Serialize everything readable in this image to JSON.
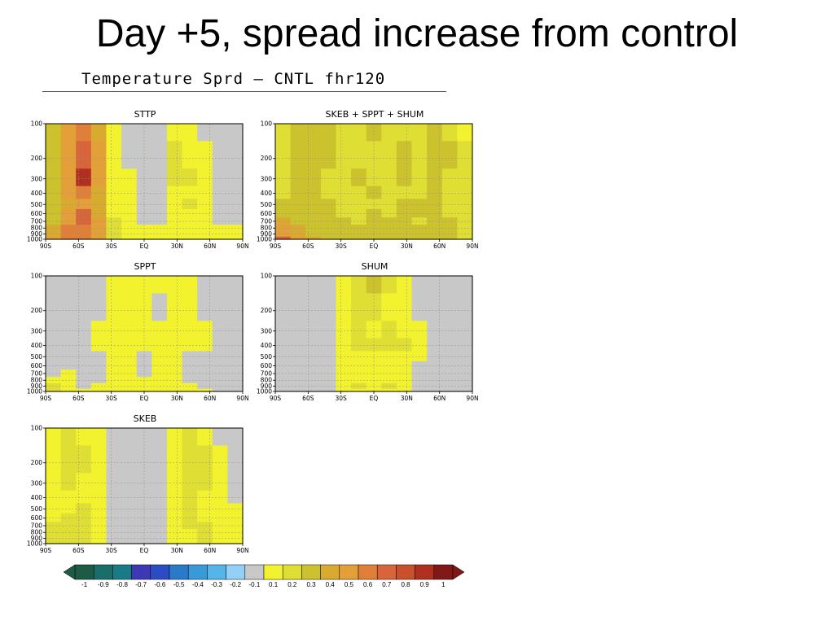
{
  "slide": {
    "title": "Day +5, spread increase from control"
  },
  "figure": {
    "title": "Temperature Sprd – CNTL  fhr120"
  },
  "chart_data": [
    {
      "type": "heatmap",
      "title": "STTP",
      "x": [
        "90S",
        "60S",
        "30S",
        "EQ",
        "30N",
        "60N",
        "90N"
      ],
      "y": [
        100,
        200,
        300,
        400,
        500,
        600,
        700,
        800,
        900,
        1000
      ],
      "xlabel": "",
      "ylabel": "",
      "ylim": [
        1000,
        100
      ],
      "y_scale": "log",
      "grid": true,
      "values": [
        [
          0.3,
          0.5,
          0.6,
          0.4,
          0.1,
          0.0,
          0.0,
          0.0,
          0.1,
          0.1,
          0.0,
          0.0,
          0.0
        ],
        [
          0.3,
          0.5,
          0.7,
          0.5,
          0.1,
          0.0,
          0.0,
          0.0,
          0.2,
          0.1,
          0.1,
          0.0,
          0.0
        ],
        [
          0.3,
          0.5,
          0.9,
          0.5,
          0.1,
          0.1,
          0.0,
          0.0,
          0.2,
          0.2,
          0.1,
          0.0,
          0.0
        ],
        [
          0.3,
          0.5,
          0.6,
          0.4,
          0.1,
          0.1,
          0.0,
          0.0,
          0.1,
          0.1,
          0.1,
          0.0,
          0.0
        ],
        [
          0.3,
          0.4,
          0.5,
          0.4,
          0.1,
          0.1,
          0.0,
          0.0,
          0.1,
          0.2,
          0.1,
          0.0,
          0.0
        ],
        [
          0.3,
          0.5,
          0.7,
          0.4,
          0.1,
          0.1,
          0.0,
          0.0,
          0.1,
          0.1,
          0.1,
          0.0,
          0.0
        ],
        [
          0.3,
          0.5,
          0.7,
          0.5,
          0.2,
          0.1,
          0.0,
          0.0,
          0.1,
          0.1,
          0.1,
          0.0,
          0.0
        ],
        [
          0.4,
          0.6,
          0.6,
          0.5,
          0.2,
          0.1,
          0.1,
          0.1,
          0.1,
          0.1,
          0.1,
          0.1,
          0.1
        ],
        [
          0.4,
          0.6,
          0.6,
          0.5,
          0.2,
          0.1,
          0.1,
          0.1,
          0.1,
          0.1,
          0.1,
          0.1,
          0.1
        ],
        [
          0.5,
          0.6,
          0.6,
          0.5,
          0.2,
          0.1,
          0.1,
          0.1,
          0.1,
          0.1,
          0.1,
          0.1,
          0.1
        ]
      ]
    },
    {
      "type": "heatmap",
      "title": "SKEB + SPPT + SHUM",
      "x": [
        "90S",
        "60S",
        "30S",
        "EQ",
        "30N",
        "60N",
        "90N"
      ],
      "y": [
        100,
        200,
        300,
        400,
        500,
        600,
        700,
        800,
        900,
        1000
      ],
      "xlabel": "",
      "ylabel": "",
      "ylim": [
        1000,
        100
      ],
      "y_scale": "log",
      "grid": true,
      "values": [
        [
          0.2,
          0.3,
          0.3,
          0.3,
          0.2,
          0.2,
          0.3,
          0.2,
          0.2,
          0.2,
          0.3,
          0.2,
          0.1
        ],
        [
          0.2,
          0.3,
          0.3,
          0.3,
          0.2,
          0.2,
          0.2,
          0.2,
          0.3,
          0.2,
          0.3,
          0.3,
          0.2
        ],
        [
          0.2,
          0.3,
          0.3,
          0.2,
          0.2,
          0.3,
          0.2,
          0.2,
          0.3,
          0.2,
          0.3,
          0.2,
          0.2
        ],
        [
          0.2,
          0.3,
          0.3,
          0.2,
          0.2,
          0.2,
          0.3,
          0.2,
          0.2,
          0.2,
          0.3,
          0.2,
          0.2
        ],
        [
          0.3,
          0.3,
          0.3,
          0.3,
          0.2,
          0.2,
          0.2,
          0.2,
          0.3,
          0.3,
          0.3,
          0.2,
          0.2
        ],
        [
          0.3,
          0.3,
          0.3,
          0.3,
          0.2,
          0.2,
          0.3,
          0.2,
          0.3,
          0.3,
          0.3,
          0.2,
          0.2
        ],
        [
          0.4,
          0.3,
          0.3,
          0.3,
          0.3,
          0.2,
          0.3,
          0.3,
          0.3,
          0.2,
          0.3,
          0.3,
          0.2
        ],
        [
          0.5,
          0.4,
          0.3,
          0.3,
          0.3,
          0.3,
          0.3,
          0.3,
          0.3,
          0.3,
          0.3,
          0.3,
          0.2
        ],
        [
          0.5,
          0.4,
          0.3,
          0.3,
          0.3,
          0.3,
          0.3,
          0.3,
          0.3,
          0.3,
          0.3,
          0.3,
          0.2
        ],
        [
          0.7,
          0.5,
          0.4,
          0.3,
          0.3,
          0.3,
          0.3,
          0.3,
          0.3,
          0.3,
          0.3,
          0.3,
          0.2
        ]
      ]
    },
    {
      "type": "heatmap",
      "title": "SPPT",
      "x": [
        "90S",
        "60S",
        "30S",
        "EQ",
        "30N",
        "60N",
        "90N"
      ],
      "y": [
        100,
        200,
        300,
        400,
        500,
        600,
        700,
        800,
        900,
        1000
      ],
      "xlabel": "",
      "ylabel": "",
      "ylim": [
        1000,
        100
      ],
      "y_scale": "log",
      "grid": true,
      "values": [
        [
          0.0,
          0.0,
          0.0,
          0.0,
          0.1,
          0.1,
          0.1,
          0.1,
          0.1,
          0.1,
          0.0,
          0.0,
          0.0
        ],
        [
          0.0,
          0.0,
          0.0,
          0.0,
          0.1,
          0.1,
          0.1,
          0.0,
          0.1,
          0.1,
          0.0,
          0.0,
          0.0
        ],
        [
          0.0,
          0.0,
          0.0,
          0.1,
          0.1,
          0.1,
          0.1,
          0.1,
          0.1,
          0.1,
          0.1,
          0.0,
          0.0
        ],
        [
          0.0,
          0.0,
          0.0,
          0.1,
          0.1,
          0.1,
          0.1,
          0.1,
          0.1,
          0.1,
          0.1,
          0.0,
          0.0
        ],
        [
          0.0,
          0.0,
          0.0,
          0.0,
          0.1,
          0.1,
          0.0,
          0.1,
          0.1,
          0.0,
          0.0,
          0.0,
          0.0
        ],
        [
          0.0,
          0.0,
          0.0,
          0.0,
          0.1,
          0.1,
          0.0,
          0.1,
          0.1,
          0.0,
          0.0,
          0.0,
          0.0
        ],
        [
          0.0,
          0.1,
          0.0,
          0.0,
          0.1,
          0.1,
          0.0,
          0.1,
          0.1,
          0.0,
          0.0,
          0.0,
          0.0
        ],
        [
          0.1,
          0.1,
          0.0,
          0.0,
          0.1,
          0.1,
          0.1,
          0.1,
          0.1,
          0.0,
          0.0,
          0.0,
          0.0
        ],
        [
          0.2,
          0.1,
          0.0,
          0.1,
          0.1,
          0.1,
          0.1,
          0.1,
          0.1,
          0.1,
          0.0,
          0.0,
          0.0
        ],
        [
          0.2,
          0.1,
          0.1,
          0.1,
          0.1,
          0.1,
          0.1,
          0.1,
          0.1,
          0.1,
          0.1,
          0.0,
          0.0
        ]
      ]
    },
    {
      "type": "heatmap",
      "title": "SHUM",
      "x": [
        "90S",
        "60S",
        "30S",
        "EQ",
        "30N",
        "60N",
        "90N"
      ],
      "y": [
        100,
        200,
        300,
        400,
        500,
        600,
        700,
        800,
        900,
        1000
      ],
      "xlabel": "",
      "ylabel": "",
      "ylim": [
        1000,
        100
      ],
      "y_scale": "log",
      "grid": true,
      "values": [
        [
          0.0,
          0.0,
          0.0,
          0.0,
          0.1,
          0.2,
          0.3,
          0.2,
          0.1,
          0.0,
          0.0,
          0.0,
          0.0
        ],
        [
          0.0,
          0.0,
          0.0,
          0.0,
          0.1,
          0.2,
          0.2,
          0.1,
          0.1,
          0.0,
          0.0,
          0.0,
          0.0
        ],
        [
          0.0,
          0.0,
          0.0,
          0.0,
          0.1,
          0.2,
          0.1,
          0.2,
          0.1,
          0.1,
          0.0,
          0.0,
          0.0
        ],
        [
          0.0,
          0.0,
          0.0,
          0.0,
          0.1,
          0.2,
          0.2,
          0.2,
          0.2,
          0.1,
          0.0,
          0.0,
          0.0
        ],
        [
          0.0,
          0.0,
          0.0,
          0.0,
          0.1,
          0.1,
          0.1,
          0.1,
          0.1,
          0.1,
          0.0,
          0.0,
          0.0
        ],
        [
          0.0,
          0.0,
          0.0,
          0.0,
          0.1,
          0.1,
          0.1,
          0.1,
          0.1,
          0.0,
          0.0,
          0.0,
          0.0
        ],
        [
          0.0,
          0.0,
          0.0,
          0.0,
          0.1,
          0.1,
          0.1,
          0.1,
          0.1,
          0.0,
          0.0,
          0.0,
          0.0
        ],
        [
          0.0,
          0.0,
          0.0,
          0.0,
          0.1,
          0.1,
          0.1,
          0.1,
          0.1,
          0.0,
          0.0,
          0.0,
          0.0
        ],
        [
          0.0,
          0.0,
          0.0,
          0.0,
          0.1,
          0.2,
          0.1,
          0.2,
          0.1,
          0.0,
          0.0,
          0.0,
          0.0
        ],
        [
          0.0,
          0.0,
          0.0,
          0.0,
          0.1,
          0.1,
          0.1,
          0.1,
          0.1,
          0.0,
          0.0,
          0.0,
          0.0
        ]
      ]
    },
    {
      "type": "heatmap",
      "title": "SKEB",
      "x": [
        "90S",
        "60S",
        "30S",
        "EQ",
        "30N",
        "60N",
        "90N"
      ],
      "y": [
        100,
        200,
        300,
        400,
        500,
        600,
        700,
        800,
        900,
        1000
      ],
      "xlabel": "",
      "ylabel": "",
      "ylim": [
        1000,
        100
      ],
      "y_scale": "log",
      "grid": true,
      "values": [
        [
          0.1,
          0.2,
          0.1,
          0.1,
          0.0,
          0.0,
          0.0,
          0.0,
          0.1,
          0.2,
          0.1,
          0.0,
          0.0
        ],
        [
          0.1,
          0.2,
          0.2,
          0.1,
          0.0,
          0.0,
          0.0,
          0.0,
          0.1,
          0.2,
          0.2,
          0.1,
          0.0
        ],
        [
          0.1,
          0.2,
          0.1,
          0.1,
          0.0,
          0.0,
          0.0,
          0.0,
          0.1,
          0.2,
          0.2,
          0.1,
          0.0
        ],
        [
          0.1,
          0.1,
          0.1,
          0.1,
          0.0,
          0.0,
          0.0,
          0.0,
          0.1,
          0.2,
          0.1,
          0.1,
          0.0
        ],
        [
          0.1,
          0.1,
          0.2,
          0.1,
          0.0,
          0.0,
          0.0,
          0.0,
          0.1,
          0.2,
          0.1,
          0.1,
          0.1
        ],
        [
          0.1,
          0.2,
          0.2,
          0.1,
          0.0,
          0.0,
          0.0,
          0.0,
          0.1,
          0.2,
          0.1,
          0.1,
          0.1
        ],
        [
          0.2,
          0.2,
          0.2,
          0.1,
          0.0,
          0.0,
          0.0,
          0.0,
          0.1,
          0.2,
          0.2,
          0.1,
          0.1
        ],
        [
          0.2,
          0.2,
          0.2,
          0.1,
          0.0,
          0.0,
          0.0,
          0.0,
          0.1,
          0.1,
          0.2,
          0.1,
          0.1
        ],
        [
          0.2,
          0.2,
          0.2,
          0.1,
          0.0,
          0.0,
          0.0,
          0.0,
          0.1,
          0.1,
          0.2,
          0.1,
          0.1
        ],
        [
          0.2,
          0.2,
          0.2,
          0.1,
          0.0,
          0.0,
          0.0,
          0.0,
          0.1,
          0.1,
          0.2,
          0.1,
          0.1
        ]
      ]
    }
  ],
  "colorbar": {
    "labels": [
      "-1",
      "-0.9",
      "-0.8",
      "-0.7",
      "-0.6",
      "-0.5",
      "-0.4",
      "-0.3",
      "-0.2",
      "-0.1",
      "0.1",
      "0.2",
      "0.3",
      "0.4",
      "0.5",
      "0.6",
      "0.7",
      "0.8",
      "0.9",
      "1"
    ],
    "colors": [
      "#1e5a46",
      "#1b6d6a",
      "#1a7b88",
      "#3d39b5",
      "#2c4cc4",
      "#2b79c9",
      "#3a9ad8",
      "#55b4e8",
      "#94d0f6",
      "#c8c8c8",
      "#f2f22e",
      "#dede34",
      "#ccc22e",
      "#d8aa30",
      "#e4a038",
      "#e08038",
      "#d8643c",
      "#c8502c",
      "#b03020",
      "#801818"
    ]
  }
}
